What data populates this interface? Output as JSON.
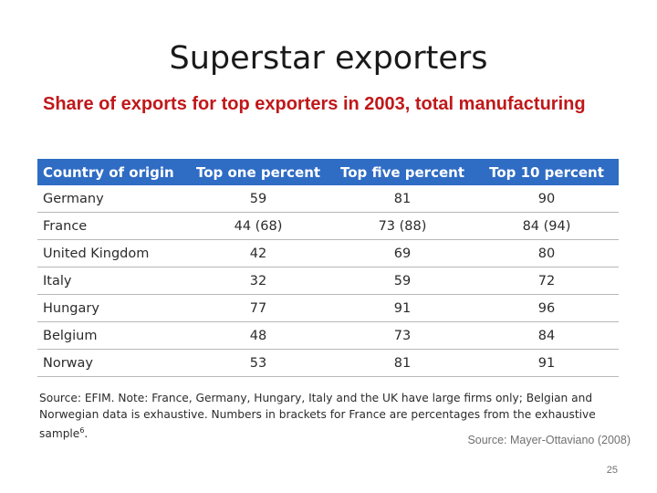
{
  "slide": {
    "title": "Superstar exporters",
    "subtitle": "Share of exports for top exporters in 2003, total manufacturing",
    "table": {
      "headers": [
        "Country of origin",
        "Top one percent",
        "Top five percent",
        "Top 10 percent"
      ],
      "rows": [
        [
          "Germany",
          "59",
          "81",
          "90"
        ],
        [
          "France",
          "44 (68)",
          "73 (88)",
          "84 (94)"
        ],
        [
          "United Kingdom",
          "42",
          "69",
          "80"
        ],
        [
          "Italy",
          "32",
          "59",
          "72"
        ],
        [
          "Hungary",
          "77",
          "91",
          "96"
        ],
        [
          "Belgium",
          "48",
          "73",
          "84"
        ],
        [
          "Norway",
          "53",
          "81",
          "91"
        ]
      ]
    },
    "note": {
      "text": "Source: EFIM. Note: France, Germany, Hungary, Italy and the UK have large firms only; Belgian and Norwegian data is exhaustive. Numbers in brackets for France are percentages from the exhaustive sample",
      "footnote_mark": "6",
      "end": "."
    },
    "source": "Source: Mayer-Ottaviano (2008)",
    "page_number": "25"
  },
  "colors": {
    "title": "#1a1a1a",
    "subtitle": "#c0181a",
    "table_header_bg": "#2f6cc4",
    "table_header_text": "#ffffff",
    "row_divider": "#b7b7b7"
  }
}
